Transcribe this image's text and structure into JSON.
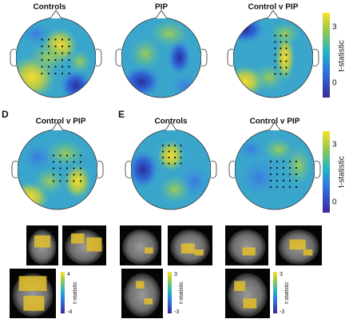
{
  "top_row": {
    "titles": [
      "Controls",
      "PIP",
      "Control v PIP"
    ],
    "colorbar": {
      "label": "t-statistic",
      "ticks": [
        3,
        0
      ]
    }
  },
  "panel_d": {
    "label": "D",
    "title": "Control v PIP",
    "mri_colorbar": {
      "label": "t-statistic",
      "ticks": [
        4,
        -4
      ]
    }
  },
  "panel_e": {
    "label": "E",
    "titles": [
      "Controls",
      "Control v PIP"
    ],
    "colorbar": {
      "label": "t-statistic",
      "ticks": [
        3,
        0
      ]
    },
    "mri_colorbars": [
      {
        "label": "t-statistic",
        "ticks": [
          3,
          -3
        ]
      },
      {
        "label": "t-statistic",
        "ticks": [
          3,
          -3
        ]
      }
    ]
  }
}
